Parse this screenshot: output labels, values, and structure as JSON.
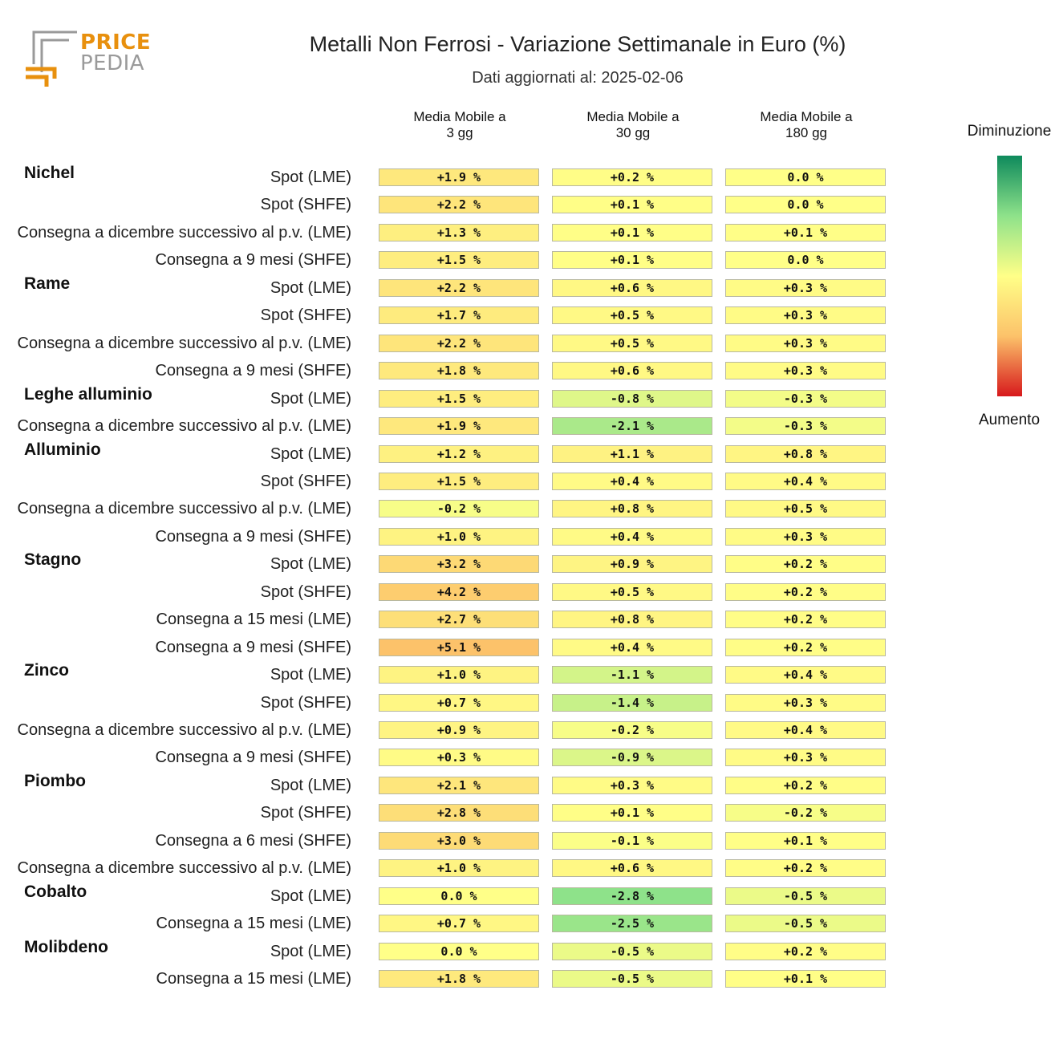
{
  "logo": {
    "word1": "PRICE",
    "word2": "PEDIA"
  },
  "title": "Metalli Non Ferrosi - Variazione Settimanale in Euro (%)",
  "subtitle": "Dati aggiornati al: 2025-02-06",
  "legend": {
    "top_label": "Diminuzione",
    "bottom_label": "Aumento",
    "gradient_colors": [
      "#0e8a5c",
      "#8ee28a",
      "#ffff88",
      "#fcc26a",
      "#d7191c"
    ]
  },
  "colors": {
    "green": "#8ee28a",
    "yellow": "#ffff88",
    "orange": "#fcc26a"
  },
  "chart_data": {
    "type": "heatmap",
    "columns": [
      "Media Mobile a\n3 gg",
      "Media Mobile a\n30 gg",
      "Media Mobile a\n180 gg"
    ],
    "groups": [
      {
        "name": "Nichel",
        "rows": [
          {
            "label": "Spot (LME)",
            "values": [
              1.9,
              0.2,
              0.0
            ],
            "text": [
              "+1.9 %",
              "+0.2 %",
              "0.0 %"
            ]
          },
          {
            "label": "Spot (SHFE)",
            "values": [
              2.2,
              0.1,
              0.0
            ],
            "text": [
              "+2.2 %",
              "+0.1 %",
              "0.0 %"
            ]
          },
          {
            "label": "Consegna a dicembre successivo al p.v. (LME)",
            "values": [
              1.3,
              0.1,
              0.1
            ],
            "text": [
              "+1.3 %",
              "+0.1 %",
              "+0.1 %"
            ]
          },
          {
            "label": "Consegna a 9 mesi (SHFE)",
            "values": [
              1.5,
              0.1,
              0.0
            ],
            "text": [
              "+1.5 %",
              "+0.1 %",
              "0.0 %"
            ]
          }
        ]
      },
      {
        "name": "Rame",
        "rows": [
          {
            "label": "Spot (LME)",
            "values": [
              2.2,
              0.6,
              0.3
            ],
            "text": [
              "+2.2 %",
              "+0.6 %",
              "+0.3 %"
            ]
          },
          {
            "label": "Spot (SHFE)",
            "values": [
              1.7,
              0.5,
              0.3
            ],
            "text": [
              "+1.7 %",
              "+0.5 %",
              "+0.3 %"
            ]
          },
          {
            "label": "Consegna a dicembre successivo al p.v. (LME)",
            "values": [
              2.2,
              0.5,
              0.3
            ],
            "text": [
              "+2.2 %",
              "+0.5 %",
              "+0.3 %"
            ]
          },
          {
            "label": "Consegna a 9 mesi (SHFE)",
            "values": [
              1.8,
              0.6,
              0.3
            ],
            "text": [
              "+1.8 %",
              "+0.6 %",
              "+0.3 %"
            ]
          }
        ]
      },
      {
        "name": "Leghe alluminio",
        "rows": [
          {
            "label": "Spot (LME)",
            "values": [
              1.5,
              -0.8,
              -0.3
            ],
            "text": [
              "+1.5 %",
              "-0.8 %",
              "-0.3 %"
            ]
          },
          {
            "label": "Consegna a dicembre successivo al p.v. (LME)",
            "values": [
              1.9,
              -2.1,
              -0.3
            ],
            "text": [
              "+1.9 %",
              "-2.1 %",
              "-0.3 %"
            ]
          }
        ]
      },
      {
        "name": "Alluminio",
        "rows": [
          {
            "label": "Spot (LME)",
            "values": [
              1.2,
              1.1,
              0.8
            ],
            "text": [
              "+1.2 %",
              "+1.1 %",
              "+0.8 %"
            ]
          },
          {
            "label": "Spot (SHFE)",
            "values": [
              1.5,
              0.4,
              0.4
            ],
            "text": [
              "+1.5 %",
              "+0.4 %",
              "+0.4 %"
            ]
          },
          {
            "label": "Consegna a dicembre successivo al p.v. (LME)",
            "values": [
              -0.2,
              0.8,
              0.5
            ],
            "text": [
              "-0.2 %",
              "+0.8 %",
              "+0.5 %"
            ]
          },
          {
            "label": "Consegna a 9 mesi (SHFE)",
            "values": [
              1.0,
              0.4,
              0.3
            ],
            "text": [
              "+1.0 %",
              "+0.4 %",
              "+0.3 %"
            ]
          }
        ]
      },
      {
        "name": "Stagno",
        "rows": [
          {
            "label": "Spot (LME)",
            "values": [
              3.2,
              0.9,
              0.2
            ],
            "text": [
              "+3.2 %",
              "+0.9 %",
              "+0.2 %"
            ]
          },
          {
            "label": "Spot (SHFE)",
            "values": [
              4.2,
              0.5,
              0.2
            ],
            "text": [
              "+4.2 %",
              "+0.5 %",
              "+0.2 %"
            ]
          },
          {
            "label": "Consegna a 15 mesi (LME)",
            "values": [
              2.7,
              0.8,
              0.2
            ],
            "text": [
              "+2.7 %",
              "+0.8 %",
              "+0.2 %"
            ]
          },
          {
            "label": "Consegna a 9 mesi (SHFE)",
            "values": [
              5.1,
              0.4,
              0.2
            ],
            "text": [
              "+5.1 %",
              "+0.4 %",
              "+0.2 %"
            ]
          }
        ]
      },
      {
        "name": "Zinco",
        "rows": [
          {
            "label": "Spot (LME)",
            "values": [
              1.0,
              -1.1,
              0.4
            ],
            "text": [
              "+1.0 %",
              "-1.1 %",
              "+0.4 %"
            ]
          },
          {
            "label": "Spot (SHFE)",
            "values": [
              0.7,
              -1.4,
              0.3
            ],
            "text": [
              "+0.7 %",
              "-1.4 %",
              "+0.3 %"
            ]
          },
          {
            "label": "Consegna a dicembre successivo al p.v. (LME)",
            "values": [
              0.9,
              -0.2,
              0.4
            ],
            "text": [
              "+0.9 %",
              "-0.2 %",
              "+0.4 %"
            ]
          },
          {
            "label": "Consegna a 9 mesi (SHFE)",
            "values": [
              0.3,
              -0.9,
              0.3
            ],
            "text": [
              "+0.3 %",
              "-0.9 %",
              "+0.3 %"
            ]
          }
        ]
      },
      {
        "name": "Piombo",
        "rows": [
          {
            "label": "Spot (LME)",
            "values": [
              2.1,
              0.3,
              0.2
            ],
            "text": [
              "+2.1 %",
              "+0.3 %",
              "+0.2 %"
            ]
          },
          {
            "label": "Spot (SHFE)",
            "values": [
              2.8,
              0.1,
              -0.2
            ],
            "text": [
              "+2.8 %",
              "+0.1 %",
              "-0.2 %"
            ]
          },
          {
            "label": "Consegna a 6 mesi (SHFE)",
            "values": [
              3.0,
              -0.1,
              0.1
            ],
            "text": [
              "+3.0 %",
              "-0.1 %",
              "+0.1 %"
            ]
          },
          {
            "label": "Consegna a dicembre successivo al p.v. (LME)",
            "values": [
              1.0,
              0.6,
              0.2
            ],
            "text": [
              "+1.0 %",
              "+0.6 %",
              "+0.2 %"
            ]
          }
        ]
      },
      {
        "name": "Cobalto",
        "rows": [
          {
            "label": "Spot (LME)",
            "values": [
              0.0,
              -2.8,
              -0.5
            ],
            "text": [
              "0.0 %",
              "-2.8 %",
              "-0.5 %"
            ]
          },
          {
            "label": "Consegna a 15 mesi (LME)",
            "values": [
              0.7,
              -2.5,
              -0.5
            ],
            "text": [
              "+0.7 %",
              "-2.5 %",
              "-0.5 %"
            ]
          }
        ]
      },
      {
        "name": "Molibdeno",
        "rows": [
          {
            "label": "Spot (LME)",
            "values": [
              0.0,
              -0.5,
              0.2
            ],
            "text": [
              "0.0 %",
              "-0.5 %",
              "+0.2 %"
            ]
          },
          {
            "label": "Consegna a 15 mesi (LME)",
            "values": [
              1.8,
              -0.5,
              0.1
            ],
            "text": [
              "+1.8 %",
              "-0.5 %",
              "+0.1 %"
            ]
          }
        ]
      }
    ]
  }
}
